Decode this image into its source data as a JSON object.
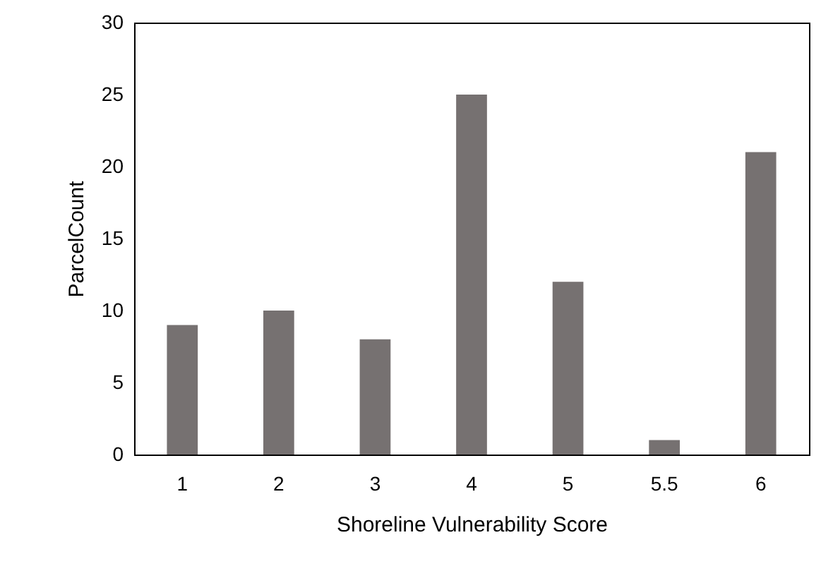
{
  "chart_data": {
    "type": "bar",
    "xlabel": "Shoreline Vulnerability Score",
    "ylabel": "ParcelCount",
    "categories": [
      "1",
      "2",
      "3",
      "4",
      "5",
      "5.5",
      "6"
    ],
    "values": [
      9,
      10,
      8,
      25,
      12,
      1,
      21
    ],
    "color": "#767171",
    "ylim": [
      0,
      30
    ],
    "yticks": [
      0,
      5,
      10,
      15,
      20,
      25,
      30
    ],
    "grid": false
  }
}
